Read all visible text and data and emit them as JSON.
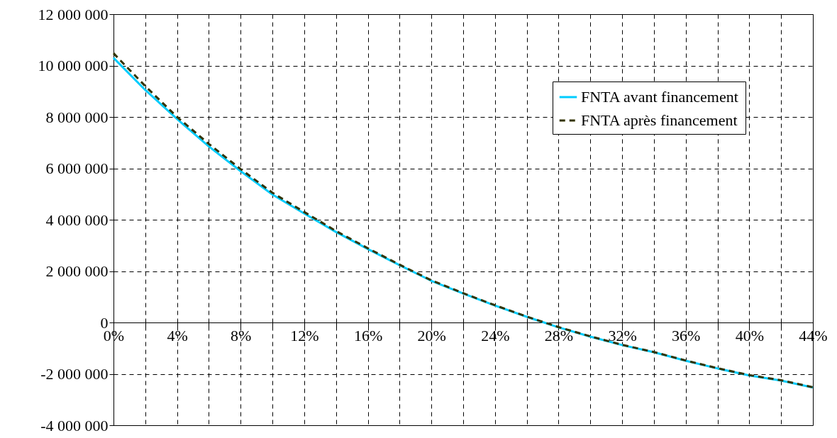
{
  "chart_data": {
    "type": "line",
    "x": [
      0,
      2,
      4,
      6,
      8,
      10,
      12,
      14,
      16,
      18,
      20,
      22,
      24,
      26,
      28,
      30,
      32,
      34,
      36,
      38,
      40,
      42,
      44
    ],
    "series": [
      {
        "name": "FNTA avant financement",
        "color": "#00ccff",
        "line_style": "solid",
        "values": [
          10300000,
          9050000,
          7920000,
          6850000,
          5890000,
          4980000,
          4240000,
          3520000,
          2860000,
          2230000,
          1620000,
          1130000,
          660000,
          220000,
          -190000,
          -550000,
          -880000,
          -1160000,
          -1490000,
          -1790000,
          -2060000,
          -2260000,
          -2530000
        ]
      },
      {
        "name": "FNTA après financement",
        "color": "#333300",
        "line_style": "dashed",
        "values": [
          10480000,
          9200000,
          8000000,
          6950000,
          5970000,
          5050000,
          4300000,
          3560000,
          2890000,
          2250000,
          1640000,
          1140000,
          670000,
          230000,
          -180000,
          -540000,
          -870000,
          -1150000,
          -1480000,
          -1780000,
          -2050000,
          -2250000,
          -2520000
        ]
      }
    ],
    "xlim": [
      0,
      44
    ],
    "xticks": [
      {
        "value": 0,
        "label": "0%"
      },
      {
        "value": 2,
        "label": null
      },
      {
        "value": 4,
        "label": "4%"
      },
      {
        "value": 6,
        "label": null
      },
      {
        "value": 8,
        "label": "8%"
      },
      {
        "value": 10,
        "label": null
      },
      {
        "value": 12,
        "label": "12%"
      },
      {
        "value": 14,
        "label": null
      },
      {
        "value": 16,
        "label": "16%"
      },
      {
        "value": 18,
        "label": null
      },
      {
        "value": 20,
        "label": "20%"
      },
      {
        "value": 22,
        "label": null
      },
      {
        "value": 24,
        "label": "24%"
      },
      {
        "value": 26,
        "label": null
      },
      {
        "value": 28,
        "label": "28%"
      },
      {
        "value": 30,
        "label": null
      },
      {
        "value": 32,
        "label": "32%"
      },
      {
        "value": 34,
        "label": null
      },
      {
        "value": 36,
        "label": "36%"
      },
      {
        "value": 38,
        "label": null
      },
      {
        "value": 40,
        "label": "40%"
      },
      {
        "value": 42,
        "label": null
      },
      {
        "value": 44,
        "label": "44%"
      }
    ],
    "ylim": [
      -4000000,
      12000000
    ],
    "yticks": [
      {
        "value": -4000000,
        "label": "-4 000 000"
      },
      {
        "value": -2000000,
        "label": "-2 000 000"
      },
      {
        "value": 0,
        "label": "0"
      },
      {
        "value": 2000000,
        "label": "2 000 000"
      },
      {
        "value": 4000000,
        "label": "4 000 000"
      },
      {
        "value": 6000000,
        "label": "6 000 000"
      },
      {
        "value": 8000000,
        "label": "8 000 000"
      },
      {
        "value": 10000000,
        "label": "10 000 000"
      },
      {
        "value": 12000000,
        "label": "12 000 000"
      }
    ],
    "grid": true,
    "legend": "top right",
    "marker": "none"
  }
}
